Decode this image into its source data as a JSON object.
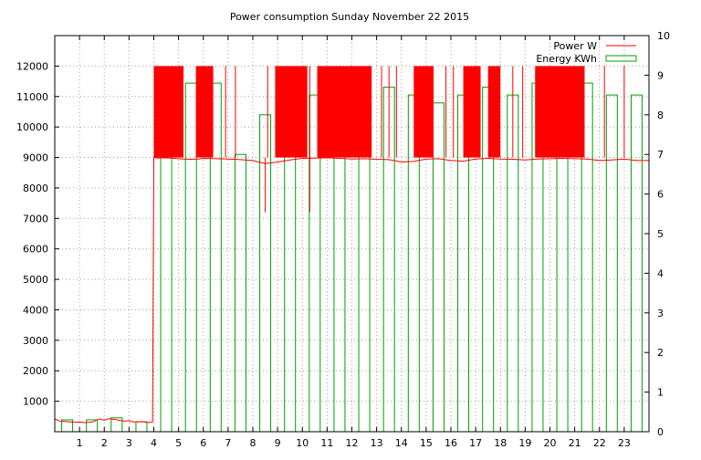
{
  "chart_data": {
    "type": "line",
    "title": "Power consumption Sunday November 22 2015",
    "xlabel": "",
    "ylabel": "",
    "y2label": "",
    "xlim": [
      0,
      24
    ],
    "ylim": [
      0,
      13000
    ],
    "y2lim": [
      0,
      10
    ],
    "xticks": [
      1,
      2,
      3,
      4,
      5,
      6,
      7,
      8,
      9,
      10,
      11,
      12,
      13,
      14,
      15,
      16,
      17,
      18,
      19,
      20,
      21,
      22,
      23
    ],
    "yticks": [
      1000,
      2000,
      3000,
      4000,
      5000,
      6000,
      7000,
      8000,
      9000,
      10000,
      11000,
      12000
    ],
    "y2ticks": [
      0,
      1,
      2,
      3,
      4,
      5,
      6,
      7,
      8,
      9,
      10
    ],
    "grid": true,
    "legend_position": "top-right",
    "series": [
      {
        "name": "Power W",
        "axis": "y",
        "color": "#ff0000",
        "style": "line",
        "x": [
          0,
          0.2,
          0.5,
          0.8,
          1.0,
          1.2,
          1.5,
          1.8,
          2.0,
          2.2,
          2.5,
          2.8,
          3.0,
          3.2,
          3.5,
          3.8,
          3.95,
          4.0,
          4.2,
          4.5,
          4.8,
          5.0,
          5.2,
          5.5,
          5.8,
          6.0,
          6.5,
          7.0,
          7.5,
          8.0,
          8.5,
          9.0,
          9.5,
          10.0,
          10.5,
          11.0,
          11.5,
          12.0,
          12.5,
          13.0,
          13.5,
          14.0,
          14.5,
          15.0,
          15.5,
          16.0,
          16.5,
          17.0,
          17.5,
          18.0,
          18.5,
          19.0,
          19.5,
          20.0,
          20.5,
          21.0,
          21.5,
          22.0,
          22.5,
          23.0,
          23.5,
          24.0
        ],
        "y": [
          420,
          350,
          330,
          310,
          320,
          300,
          310,
          420,
          380,
          430,
          390,
          350,
          360,
          320,
          330,
          300,
          320,
          9000,
          8980,
          8990,
          8970,
          8960,
          8950,
          8940,
          8950,
          8970,
          8960,
          8950,
          8930,
          8900,
          8800,
          8850,
          8920,
          8970,
          8980,
          8990,
          8970,
          8950,
          8960,
          8940,
          8930,
          8850,
          8870,
          8950,
          8960,
          8900,
          8880,
          8950,
          8970,
          8950,
          8940,
          8920,
          8950,
          8960,
          8970,
          8960,
          8950,
          8900,
          8920,
          8950,
          8900,
          8900
        ]
      },
      {
        "name": "Energy KWh",
        "axis": "y2",
        "color": "#00a000",
        "style": "impulses",
        "x": [
          0.5,
          1.5,
          2.5,
          3.5,
          4.5,
          5.5,
          6.5,
          7.5,
          8.5,
          9.5,
          10.5,
          11.5,
          12.5,
          13.5,
          14.5,
          15.5,
          16.5,
          17.5,
          18.5,
          19.5,
          20.5,
          21.5,
          22.5,
          23.5
        ],
        "y": [
          0.3,
          0.3,
          0.35,
          0.25,
          8.8,
          8.8,
          8.8,
          7.0,
          8.0,
          8.9,
          8.5,
          8.9,
          9.1,
          8.7,
          8.5,
          8.3,
          8.5,
          8.7,
          8.5,
          8.8,
          9.0,
          8.8,
          8.5,
          8.5
        ]
      }
    ]
  }
}
